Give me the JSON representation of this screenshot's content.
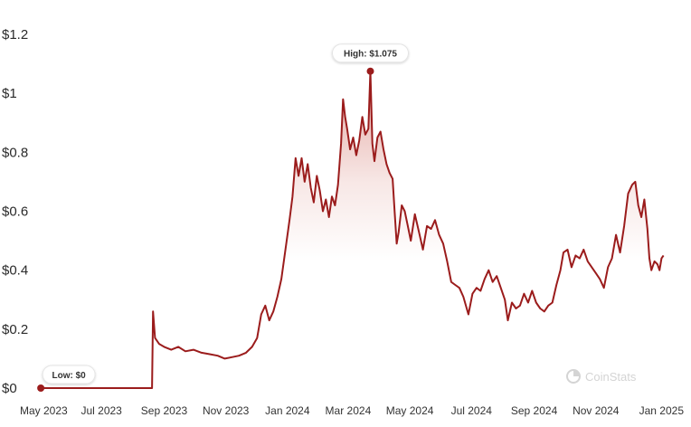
{
  "chart_data": {
    "type": "area",
    "title": "",
    "xlabel": "",
    "ylabel": "",
    "ylim": [
      0,
      1.2
    ],
    "xlim": [
      "2023-05-01",
      "2025-01-10"
    ],
    "grid": false,
    "y_ticks": [
      "$0",
      "$0.2",
      "$0.4",
      "$0.6",
      "$0.8",
      "$1",
      "$1.2"
    ],
    "y_tick_values": [
      0,
      0.2,
      0.4,
      0.6,
      0.8,
      1.0,
      1.2
    ],
    "x_ticks": [
      "May 2023",
      "Jul 2023",
      "Sep 2023",
      "Nov 2023",
      "Jan 2024",
      "Mar 2024",
      "May 2024",
      "Jul 2024",
      "Sep 2024",
      "Nov 2024",
      "Jan 2025"
    ],
    "x_tick_dates": [
      "2023-05-01",
      "2023-07-01",
      "2023-09-01",
      "2023-11-01",
      "2024-01-01",
      "2024-03-01",
      "2024-05-01",
      "2024-07-01",
      "2024-09-01",
      "2024-11-01",
      "2025-01-01"
    ],
    "high": {
      "label": "High: $1.075",
      "date": "2024-03-23",
      "value": 1.075
    },
    "low": {
      "label": "Low: $0",
      "date": "2023-05-02",
      "value": 0
    },
    "watermark": "CoinStats",
    "colors": {
      "line": "#9b1c1c",
      "fill": "#c0392b",
      "marker": "#9b1c1c"
    },
    "series": [
      {
        "points": [
          [
            "2023-05-02",
            0.0
          ],
          [
            "2023-06-15",
            0.0
          ],
          [
            "2023-08-01",
            0.0
          ],
          [
            "2023-08-20",
            0.0
          ],
          [
            "2023-08-21",
            0.26
          ],
          [
            "2023-08-23",
            0.17
          ],
          [
            "2023-08-27",
            0.15
          ],
          [
            "2023-09-01",
            0.14
          ],
          [
            "2023-09-08",
            0.13
          ],
          [
            "2023-09-15",
            0.14
          ],
          [
            "2023-09-22",
            0.125
          ],
          [
            "2023-09-30",
            0.13
          ],
          [
            "2023-10-08",
            0.12
          ],
          [
            "2023-10-16",
            0.115
          ],
          [
            "2023-10-24",
            0.11
          ],
          [
            "2023-10-31",
            0.1
          ],
          [
            "2023-11-07",
            0.105
          ],
          [
            "2023-11-14",
            0.11
          ],
          [
            "2023-11-21",
            0.12
          ],
          [
            "2023-11-27",
            0.14
          ],
          [
            "2023-12-02",
            0.17
          ],
          [
            "2023-12-06",
            0.25
          ],
          [
            "2023-12-10",
            0.28
          ],
          [
            "2023-12-14",
            0.23
          ],
          [
            "2023-12-18",
            0.26
          ],
          [
            "2023-12-22",
            0.31
          ],
          [
            "2023-12-26",
            0.37
          ],
          [
            "2023-12-30",
            0.47
          ],
          [
            "2024-01-03",
            0.57
          ],
          [
            "2024-01-06",
            0.65
          ],
          [
            "2024-01-09",
            0.78
          ],
          [
            "2024-01-12",
            0.72
          ],
          [
            "2024-01-15",
            0.78
          ],
          [
            "2024-01-18",
            0.7
          ],
          [
            "2024-01-21",
            0.76
          ],
          [
            "2024-01-24",
            0.68
          ],
          [
            "2024-01-27",
            0.63
          ],
          [
            "2024-01-30",
            0.72
          ],
          [
            "2024-02-02",
            0.67
          ],
          [
            "2024-02-05",
            0.6
          ],
          [
            "2024-02-08",
            0.64
          ],
          [
            "2024-02-11",
            0.58
          ],
          [
            "2024-02-14",
            0.65
          ],
          [
            "2024-02-17",
            0.62
          ],
          [
            "2024-02-20",
            0.69
          ],
          [
            "2024-02-23",
            0.83
          ],
          [
            "2024-02-25",
            0.98
          ],
          [
            "2024-02-27",
            0.92
          ],
          [
            "2024-02-29",
            0.88
          ],
          [
            "2024-03-03",
            0.81
          ],
          [
            "2024-03-06",
            0.85
          ],
          [
            "2024-03-09",
            0.79
          ],
          [
            "2024-03-12",
            0.84
          ],
          [
            "2024-03-15",
            0.92
          ],
          [
            "2024-03-18",
            0.86
          ],
          [
            "2024-03-21",
            0.88
          ],
          [
            "2024-03-23",
            1.075
          ],
          [
            "2024-03-25",
            0.83
          ],
          [
            "2024-03-27",
            0.77
          ],
          [
            "2024-03-30",
            0.85
          ],
          [
            "2024-04-02",
            0.87
          ],
          [
            "2024-04-05",
            0.81
          ],
          [
            "2024-04-08",
            0.76
          ],
          [
            "2024-04-11",
            0.73
          ],
          [
            "2024-04-14",
            0.71
          ],
          [
            "2024-04-16",
            0.6
          ],
          [
            "2024-04-18",
            0.49
          ],
          [
            "2024-04-20",
            0.53
          ],
          [
            "2024-04-23",
            0.62
          ],
          [
            "2024-04-26",
            0.6
          ],
          [
            "2024-04-29",
            0.55
          ],
          [
            "2024-05-02",
            0.5
          ],
          [
            "2024-05-06",
            0.59
          ],
          [
            "2024-05-10",
            0.53
          ],
          [
            "2024-05-14",
            0.47
          ],
          [
            "2024-05-18",
            0.55
          ],
          [
            "2024-05-22",
            0.54
          ],
          [
            "2024-05-26",
            0.57
          ],
          [
            "2024-05-30",
            0.52
          ],
          [
            "2024-06-03",
            0.49
          ],
          [
            "2024-06-07",
            0.43
          ],
          [
            "2024-06-11",
            0.36
          ],
          [
            "2024-06-15",
            0.35
          ],
          [
            "2024-06-19",
            0.34
          ],
          [
            "2024-06-23",
            0.31
          ],
          [
            "2024-06-28",
            0.25
          ],
          [
            "2024-07-02",
            0.32
          ],
          [
            "2024-07-06",
            0.34
          ],
          [
            "2024-07-10",
            0.33
          ],
          [
            "2024-07-14",
            0.37
          ],
          [
            "2024-07-18",
            0.4
          ],
          [
            "2024-07-22",
            0.36
          ],
          [
            "2024-07-26",
            0.38
          ],
          [
            "2024-07-30",
            0.34
          ],
          [
            "2024-08-03",
            0.3
          ],
          [
            "2024-08-06",
            0.23
          ],
          [
            "2024-08-10",
            0.29
          ],
          [
            "2024-08-14",
            0.27
          ],
          [
            "2024-08-18",
            0.28
          ],
          [
            "2024-08-22",
            0.32
          ],
          [
            "2024-08-26",
            0.29
          ],
          [
            "2024-08-30",
            0.33
          ],
          [
            "2024-09-03",
            0.29
          ],
          [
            "2024-09-07",
            0.27
          ],
          [
            "2024-09-11",
            0.26
          ],
          [
            "2024-09-15",
            0.28
          ],
          [
            "2024-09-19",
            0.29
          ],
          [
            "2024-09-23",
            0.35
          ],
          [
            "2024-09-27",
            0.4
          ],
          [
            "2024-09-30",
            0.46
          ],
          [
            "2024-10-04",
            0.47
          ],
          [
            "2024-10-08",
            0.41
          ],
          [
            "2024-10-12",
            0.45
          ],
          [
            "2024-10-16",
            0.44
          ],
          [
            "2024-10-20",
            0.47
          ],
          [
            "2024-10-24",
            0.43
          ],
          [
            "2024-10-28",
            0.41
          ],
          [
            "2024-11-01",
            0.39
          ],
          [
            "2024-11-05",
            0.37
          ],
          [
            "2024-11-09",
            0.34
          ],
          [
            "2024-11-13",
            0.41
          ],
          [
            "2024-11-17",
            0.44
          ],
          [
            "2024-11-21",
            0.52
          ],
          [
            "2024-11-25",
            0.46
          ],
          [
            "2024-11-29",
            0.55
          ],
          [
            "2024-12-03",
            0.66
          ],
          [
            "2024-12-07",
            0.69
          ],
          [
            "2024-12-10",
            0.7
          ],
          [
            "2024-12-13",
            0.62
          ],
          [
            "2024-12-16",
            0.58
          ],
          [
            "2024-12-19",
            0.64
          ],
          [
            "2024-12-22",
            0.54
          ],
          [
            "2024-12-24",
            0.44
          ],
          [
            "2024-12-26",
            0.4
          ],
          [
            "2024-12-29",
            0.43
          ],
          [
            "2025-01-01",
            0.42
          ],
          [
            "2025-01-03",
            0.4
          ],
          [
            "2025-01-05",
            0.44
          ],
          [
            "2025-01-07",
            0.45
          ]
        ]
      }
    ]
  }
}
